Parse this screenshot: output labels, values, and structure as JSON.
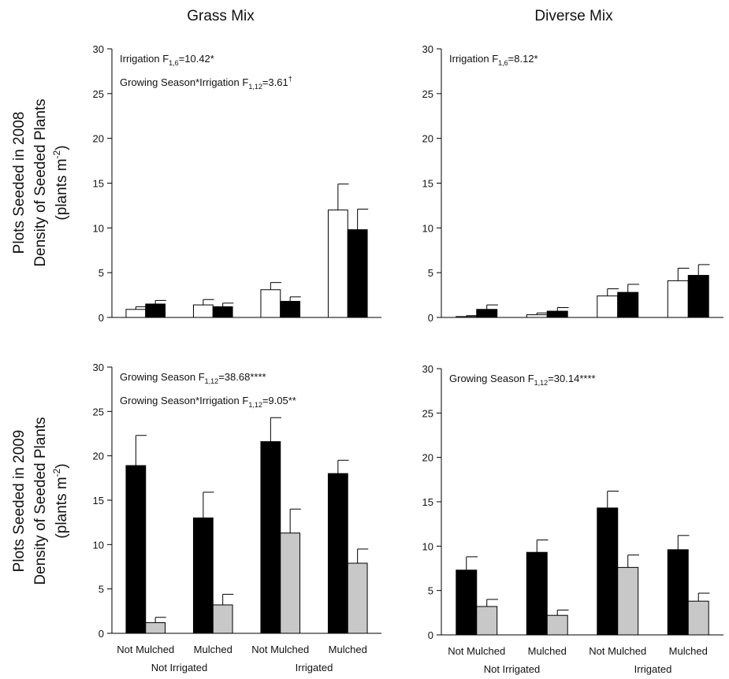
{
  "figure": {
    "column_titles": [
      "Grass Mix",
      "Diverse Mix"
    ],
    "row_labels": [
      [
        "Plots Seeded in 2008",
        "Density of Seeded Plants",
        "(plants m",
        "-2",
        ")"
      ],
      [
        "Plots Seeded in 2009",
        "Density of Seeded Plants",
        "(plants m",
        "-2",
        ")"
      ]
    ]
  },
  "chart_data": [
    {
      "type": "bar",
      "row": 0,
      "col": 0,
      "title": "",
      "categories": [
        "Not Mulched",
        "Mulched",
        "Not Mulched",
        "Mulched"
      ],
      "groups": [
        {
          "label": "Not Irrigated",
          "span": [
            0,
            1
          ]
        },
        {
          "label": "Irrigated",
          "span": [
            2,
            3
          ]
        }
      ],
      "show_xlabels": false,
      "ylim": [
        0,
        30
      ],
      "yticks": [
        0,
        5,
        10,
        15,
        20,
        25,
        30
      ],
      "series": [
        {
          "fill": "#ffffff",
          "values": [
            0.9,
            1.4,
            3.1,
            12.0
          ],
          "errors": [
            0.3,
            0.6,
            0.8,
            2.9
          ]
        },
        {
          "fill": "#000000",
          "values": [
            1.5,
            1.2,
            1.8,
            9.8
          ],
          "errors": [
            0.4,
            0.4,
            0.5,
            2.3
          ]
        }
      ],
      "annotations": [
        {
          "parts": [
            [
              "Irrigation F",
              "n"
            ],
            [
              "1,6",
              "sub"
            ],
            [
              "=10.42*",
              "n"
            ]
          ]
        },
        {
          "parts": [
            [
              "Growing Season*Irrigation F",
              "n"
            ],
            [
              "1,12",
              "sub"
            ],
            [
              "=3.61",
              "n"
            ],
            [
              "†",
              "sup"
            ]
          ]
        }
      ]
    },
    {
      "type": "bar",
      "row": 0,
      "col": 1,
      "title": "",
      "categories": [
        "Not Mulched",
        "Mulched",
        "Not Mulched",
        "Mulched"
      ],
      "groups": [
        {
          "label": "Not Irrigated",
          "span": [
            0,
            1
          ]
        },
        {
          "label": "Irrigated",
          "span": [
            2,
            3
          ]
        }
      ],
      "show_xlabels": false,
      "ylim": [
        0,
        30
      ],
      "yticks": [
        0,
        5,
        10,
        15,
        20,
        25,
        30
      ],
      "series": [
        {
          "fill": "#ffffff",
          "values": [
            0.1,
            0.3,
            2.4,
            4.1
          ],
          "errors": [
            0.1,
            0.2,
            0.8,
            1.4
          ]
        },
        {
          "fill": "#000000",
          "values": [
            0.9,
            0.7,
            2.8,
            4.7
          ],
          "errors": [
            0.5,
            0.4,
            0.9,
            1.2
          ]
        }
      ],
      "annotations": [
        {
          "parts": [
            [
              "Irrigation F",
              "n"
            ],
            [
              "1,6",
              "sub"
            ],
            [
              "=8.12*",
              "n"
            ]
          ]
        }
      ]
    },
    {
      "type": "bar",
      "row": 1,
      "col": 0,
      "title": "",
      "categories": [
        "Not Mulched",
        "Mulched",
        "Not Mulched",
        "Mulched"
      ],
      "groups": [
        {
          "label": "Not Irrigated",
          "span": [
            0,
            1
          ]
        },
        {
          "label": "Irrigated",
          "span": [
            2,
            3
          ]
        }
      ],
      "show_xlabels": true,
      "ylim": [
        0,
        30
      ],
      "yticks": [
        0,
        5,
        10,
        15,
        20,
        25,
        30
      ],
      "series": [
        {
          "fill": "#000000",
          "values": [
            18.9,
            13.0,
            21.6,
            18.0
          ],
          "errors": [
            3.4,
            2.9,
            2.7,
            1.5
          ]
        },
        {
          "fill": "#c8c8c8",
          "values": [
            1.2,
            3.2,
            11.3,
            7.9
          ],
          "errors": [
            0.6,
            1.2,
            2.7,
            1.6
          ]
        }
      ],
      "annotations": [
        {
          "parts": [
            [
              "Growing Season F",
              "n"
            ],
            [
              "1,12",
              "sub"
            ],
            [
              "=38.68****",
              "n"
            ]
          ]
        },
        {
          "parts": [
            [
              "Growing Season*Irrigation F",
              "n"
            ],
            [
              "1,12",
              "sub"
            ],
            [
              "=9.05**",
              "n"
            ]
          ]
        }
      ]
    },
    {
      "type": "bar",
      "row": 1,
      "col": 1,
      "title": "",
      "categories": [
        "Not Mulched",
        "Mulched",
        "Not Mulched",
        "Mulched"
      ],
      "groups": [
        {
          "label": "Not Irrigated",
          "span": [
            0,
            1
          ]
        },
        {
          "label": "Irrigated",
          "span": [
            2,
            3
          ]
        }
      ],
      "show_xlabels": true,
      "ylim": [
        0,
        30
      ],
      "yticks": [
        0,
        5,
        10,
        15,
        20,
        25,
        30
      ],
      "series": [
        {
          "fill": "#000000",
          "values": [
            7.3,
            9.3,
            14.3,
            9.6
          ],
          "errors": [
            1.5,
            1.4,
            1.9,
            1.6
          ]
        },
        {
          "fill": "#c8c8c8",
          "values": [
            3.2,
            2.2,
            7.6,
            3.8
          ],
          "errors": [
            0.8,
            0.6,
            1.4,
            0.9
          ]
        }
      ],
      "annotations": [
        {
          "parts": [
            [
              "Growing Season F",
              "n"
            ],
            [
              "1,12",
              "sub"
            ],
            [
              "=30.14****",
              "n"
            ]
          ]
        }
      ]
    }
  ]
}
